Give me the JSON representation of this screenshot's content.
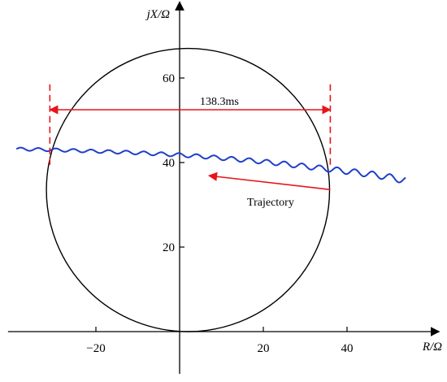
{
  "chart_data": {
    "type": "line",
    "xlabel": "R/Ω",
    "ylabel": "jX/Ω",
    "xlim": [
      -41,
      62
    ],
    "ylim": [
      -10,
      78
    ],
    "x_ticks": [
      -20,
      20,
      40
    ],
    "y_ticks": [
      20,
      40,
      60
    ],
    "x_tick_labels": [
      "−20",
      "20",
      "40"
    ],
    "y_tick_labels": [
      "20",
      "40",
      "60"
    ],
    "grid": false,
    "legend": "none",
    "circle": {
      "center": [
        2,
        33.5
      ],
      "radius": 33.5,
      "color": "#000000"
    },
    "series": [
      {
        "color": "#1f3fc8",
        "x": [
          -39,
          -34,
          -30,
          -24,
          -18,
          -12,
          -6,
          0,
          6,
          12,
          18,
          24,
          30,
          36,
          42,
          48,
          54
        ],
        "y": [
          43.2,
          43.1,
          43.0,
          42.8,
          42.6,
          42.4,
          42.1,
          41.8,
          41.4,
          40.9,
          40.4,
          39.8,
          39.1,
          38.4,
          37.7,
          36.9,
          35.8
        ],
        "ripple_amplitude": 0.45,
        "ripple_period": 4.2
      }
    ],
    "annotations": {
      "duration": {
        "text": "138.3ms",
        "x_start": -31,
        "x_end": 36,
        "y_arrow": 52.5,
        "y_dash_top": 58.5,
        "y_dash_bottom": 38.5,
        "color": "#e8141b"
      },
      "trajectory": {
        "text": "Trajectory",
        "arrow_from": [
          36,
          33.6
        ],
        "arrow_to": [
          7,
          36.9
        ],
        "text_pos": [
          13,
          30.8
        ],
        "color": "#e8141b"
      }
    }
  }
}
